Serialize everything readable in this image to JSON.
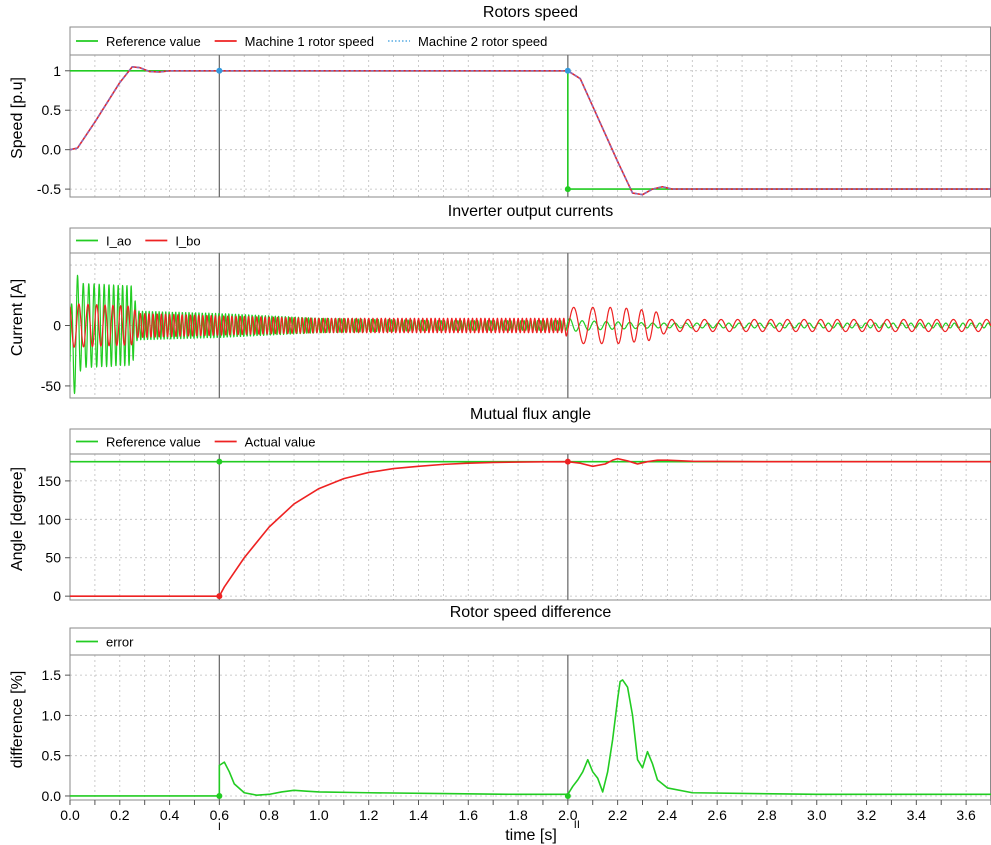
{
  "colors": {
    "green": "#22cc22",
    "red": "#ee2222",
    "blue": "#3399dd",
    "purple": "#8a6bb8",
    "cursor": "#707070",
    "grid": "#bdbdbd"
  },
  "x_axis": {
    "label": "time [s]",
    "range": [
      0.0,
      3.7
    ],
    "ticks": [
      "0.0",
      "0.2",
      "0.4",
      "0.6",
      "0.8",
      "1.0",
      "1.2",
      "1.4",
      "1.6",
      "1.8",
      "2.0",
      "2.2",
      "2.4",
      "2.6",
      "2.8",
      "3.0",
      "3.2",
      "3.4",
      "3.6"
    ]
  },
  "cursors": [
    {
      "x": 0.6,
      "label": "I"
    },
    {
      "x": 2.0,
      "label": "II"
    }
  ],
  "chart_data": [
    {
      "type": "line",
      "title": "Rotors speed",
      "ylabel": "Speed [p.u]",
      "xlim": [
        0.0,
        3.7
      ],
      "ylim": [
        -0.6,
        1.2
      ],
      "yticks": [
        "1",
        "0.5",
        "0.0",
        "-0.5"
      ],
      "ytick_values": [
        1,
        0.5,
        0,
        -0.5
      ],
      "legend": [
        "Reference value",
        "Machine 1 rotor speed",
        "Machine 2 rotor speed"
      ],
      "series": [
        {
          "name": "Reference value",
          "color": "#22cc22",
          "x": [
            0,
            2.0,
            2.0,
            3.7
          ],
          "y": [
            1,
            1,
            -0.5,
            -0.5
          ]
        },
        {
          "name": "Machine 1 rotor speed",
          "color": "#ee2222",
          "x": [
            0,
            0.03,
            0.1,
            0.2,
            0.25,
            0.28,
            0.32,
            0.36,
            0.4,
            0.5,
            2.0,
            2.05,
            2.15,
            2.2,
            2.26,
            2.3,
            2.34,
            2.38,
            2.42,
            2.5,
            3.7
          ],
          "y": [
            0,
            0.02,
            0.35,
            0.85,
            1.05,
            1.04,
            0.99,
            0.985,
            1.0,
            1.0,
            1.0,
            0.9,
            0.2,
            -0.15,
            -0.55,
            -0.57,
            -0.5,
            -0.47,
            -0.5,
            -0.5,
            -0.5
          ]
        },
        {
          "name": "Machine 2 rotor speed",
          "color": "#3399dd",
          "x": [
            0,
            0.03,
            0.1,
            0.2,
            0.25,
            0.28,
            0.32,
            0.36,
            0.4,
            0.5,
            2.0,
            2.05,
            2.15,
            2.2,
            2.26,
            2.3,
            2.34,
            2.38,
            2.42,
            2.5,
            3.7
          ],
          "y": [
            0,
            0.02,
            0.35,
            0.85,
            1.05,
            1.04,
            0.99,
            0.985,
            1.0,
            1.0,
            1.0,
            0.9,
            0.2,
            -0.15,
            -0.55,
            -0.57,
            -0.5,
            -0.47,
            -0.5,
            -0.5,
            -0.5
          ]
        }
      ],
      "markers": [
        {
          "x": 0.6,
          "y": 1,
          "color": "#3399dd"
        },
        {
          "x": 2.0,
          "y": 1,
          "color": "#3399dd"
        },
        {
          "x": 2.0,
          "y": -0.5,
          "color": "#22cc22"
        }
      ]
    },
    {
      "type": "line",
      "title": "Inverter output currents",
      "ylabel": "Current [A]",
      "xlim": [
        0.0,
        3.7
      ],
      "ylim": [
        -60,
        60
      ],
      "yticks": [
        "0",
        "-50"
      ],
      "ytick_values": [
        0,
        -50
      ],
      "extra_gridlines": [
        -25,
        25,
        50
      ],
      "legend": [
        "I_ao",
        "I_bo"
      ],
      "series": [
        {
          "name": "I_ao",
          "color": "#22cc22",
          "oscillation": {
            "envelope_t": [
              0,
              0.02,
              0.05,
              0.25,
              0.27,
              0.6,
              1.0,
              1.5,
              1.99,
              2.0,
              2.05,
              2.35,
              2.4,
              3.7
            ],
            "envelope_a": [
              40,
              45,
              35,
              33,
              12,
              10,
              6,
              4,
              4,
              6,
              4,
              2,
              2,
              2
            ],
            "freq_t": [
              0,
              0.25,
              0.3,
              0.6,
              1.0,
              1.99,
              2.0,
              3.7
            ],
            "freq_f": [
              40,
              60,
              75,
              75,
              75,
              75,
              20,
              30
            ]
          }
        },
        {
          "name": "I_bo",
          "color": "#ee2222",
          "oscillation": {
            "envelope_t": [
              0,
              0.02,
              0.25,
              0.27,
              0.6,
              1.0,
              1.99,
              2.0,
              2.1,
              2.2,
              2.35,
              2.4,
              3.7
            ],
            "envelope_a": [
              18,
              18,
              16,
              10,
              8,
              6,
              6,
              15,
              15,
              15,
              12,
              5,
              5
            ],
            "freq_t": [
              0,
              0.25,
              0.3,
              0.6,
              1.0,
              1.99,
              2.0,
              2.3,
              2.5,
              3.7
            ],
            "freq_f": [
              25,
              35,
              60,
              60,
              60,
              60,
              12,
              17,
              15,
              15
            ]
          }
        }
      ]
    },
    {
      "type": "line",
      "title": "Mutual flux angle",
      "ylabel": "Angle [degree]",
      "xlim": [
        0.0,
        3.7
      ],
      "ylim": [
        -5,
        185
      ],
      "yticks": [
        "150",
        "100",
        "50",
        "0"
      ],
      "ytick_values": [
        150,
        100,
        50,
        0
      ],
      "legend": [
        "Reference value",
        "Actual value"
      ],
      "series": [
        {
          "name": "Reference value",
          "color": "#22cc22",
          "x": [
            0,
            3.7
          ],
          "y": [
            175,
            175
          ]
        },
        {
          "name": "Actual value",
          "color": "#ee2222",
          "x": [
            0,
            0.6,
            0.62,
            0.7,
            0.8,
            0.9,
            1.0,
            1.1,
            1.2,
            1.3,
            1.4,
            1.5,
            1.6,
            1.7,
            1.8,
            1.9,
            2.0,
            2.05,
            2.1,
            2.15,
            2.18,
            2.2,
            2.24,
            2.28,
            2.32,
            2.36,
            2.4,
            2.5,
            2.8,
            3.0,
            3.7
          ],
          "y": [
            0,
            0,
            12,
            50,
            90,
            120,
            140,
            153,
            161,
            166,
            169,
            171.5,
            173,
            174,
            174.5,
            174.8,
            175,
            173,
            169,
            172,
            177,
            179,
            176,
            172,
            175,
            177,
            177,
            175.5,
            175,
            175,
            175
          ]
        }
      ],
      "markers": [
        {
          "x": 0.6,
          "y": 175,
          "color": "#22cc22"
        },
        {
          "x": 2.0,
          "y": 175,
          "color": "#ee2222"
        },
        {
          "x": 0.6,
          "y": 0,
          "color": "#ee2222"
        }
      ]
    },
    {
      "type": "line",
      "title": "Rotor speed difference",
      "ylabel": "difference [%]",
      "xlim": [
        0.0,
        3.7
      ],
      "ylim": [
        -0.05,
        1.75
      ],
      "yticks": [
        "1.5",
        "1.0",
        "0.5",
        "0.0"
      ],
      "ytick_values": [
        1.5,
        1.0,
        0.5,
        0.0
      ],
      "legend": [
        "error"
      ],
      "series": [
        {
          "name": "error",
          "color": "#22cc22",
          "x": [
            0,
            0.6,
            0.6,
            0.62,
            0.64,
            0.66,
            0.7,
            0.75,
            0.8,
            0.85,
            0.9,
            0.95,
            1.0,
            1.2,
            1.5,
            1.8,
            2.0,
            2.02,
            2.04,
            2.06,
            2.08,
            2.1,
            2.12,
            2.14,
            2.16,
            2.18,
            2.2,
            2.21,
            2.22,
            2.24,
            2.26,
            2.28,
            2.3,
            2.32,
            2.34,
            2.36,
            2.38,
            2.4,
            2.5,
            3.0,
            3.7
          ],
          "y": [
            0,
            0,
            0.38,
            0.42,
            0.3,
            0.15,
            0.04,
            0.01,
            0.02,
            0.05,
            0.07,
            0.06,
            0.05,
            0.04,
            0.03,
            0.02,
            0.02,
            0.12,
            0.2,
            0.3,
            0.45,
            0.3,
            0.22,
            0.05,
            0.3,
            0.7,
            1.2,
            1.42,
            1.44,
            1.35,
            1.0,
            0.45,
            0.35,
            0.55,
            0.4,
            0.2,
            0.15,
            0.1,
            0.04,
            0.02,
            0.02
          ]
        }
      ],
      "markers": [
        {
          "x": 0.6,
          "y": 0,
          "color": "#22cc22"
        },
        {
          "x": 2.0,
          "y": 0,
          "color": "#22cc22"
        }
      ]
    }
  ]
}
